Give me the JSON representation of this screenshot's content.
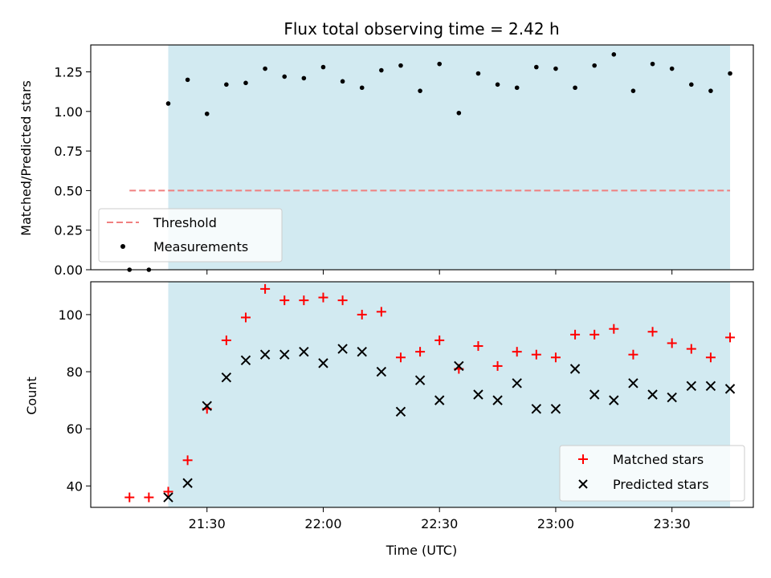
{
  "chart_data": [
    {
      "type": "scatter",
      "panel": "top",
      "title": "Flux total observing time = 2.42 h",
      "ylabel": "Matched/Predicted stars",
      "xlabel": "",
      "ylim": [
        0.0,
        1.42
      ],
      "yticks": [
        0.0,
        0.25,
        0.5,
        0.75,
        1.0,
        1.25
      ],
      "ytick_labels": [
        "0.00",
        "0.25",
        "0.50",
        "0.75",
        "1.00",
        "1.25"
      ],
      "shaded_region": {
        "x_start": "21:20",
        "x_end": "23:45",
        "color": "#add8e6"
      },
      "legend_position": "lower-left",
      "threshold": {
        "name": "Threshold",
        "value": 0.5,
        "x_start": "21:10",
        "x_end": "23:45",
        "color": "#f08080",
        "style": "dashed"
      },
      "series": [
        {
          "name": "Measurements",
          "color": "#000000",
          "marker": "dot",
          "x": [
            "21:10",
            "21:15",
            "21:20",
            "21:25",
            "21:30",
            "21:35",
            "21:40",
            "21:45",
            "21:50",
            "21:55",
            "22:00",
            "22:05",
            "22:10",
            "22:15",
            "22:20",
            "22:25",
            "22:30",
            "22:35",
            "22:40",
            "22:45",
            "22:50",
            "22:55",
            "23:00",
            "23:05",
            "23:10",
            "23:15",
            "23:20",
            "23:25",
            "23:30",
            "23:35",
            "23:40",
            "23:45"
          ],
          "y": [
            0.0,
            0.0,
            1.05,
            1.2,
            0.985,
            1.17,
            1.18,
            1.27,
            1.22,
            1.21,
            1.28,
            1.19,
            1.15,
            1.26,
            1.29,
            1.13,
            1.3,
            0.99,
            1.24,
            1.17,
            1.15,
            1.28,
            1.27,
            1.15,
            1.29,
            1.36,
            1.13,
            1.3,
            1.27,
            1.17,
            1.13,
            1.24
          ]
        }
      ]
    },
    {
      "type": "scatter",
      "panel": "bottom",
      "title": "",
      "ylabel": "Count",
      "xlabel": "Time (UTC)",
      "ylim": [
        32.5,
        111.5
      ],
      "yticks": [
        40,
        60,
        80,
        100
      ],
      "ytick_labels": [
        "40",
        "60",
        "80",
        "100"
      ],
      "xticks": [
        "21:30",
        "22:00",
        "22:30",
        "23:00",
        "23:30"
      ],
      "xlim": [
        "21:00",
        "23:51"
      ],
      "shaded_region": {
        "x_start": "21:20",
        "x_end": "23:45",
        "color": "#add8e6"
      },
      "legend_position": "lower-right",
      "series": [
        {
          "name": "Matched stars",
          "color": "#ff0000",
          "marker": "plus",
          "x": [
            "21:10",
            "21:15",
            "21:20",
            "21:25",
            "21:30",
            "21:35",
            "21:40",
            "21:45",
            "21:50",
            "21:55",
            "22:00",
            "22:05",
            "22:10",
            "22:15",
            "22:20",
            "22:25",
            "22:30",
            "22:35",
            "22:40",
            "22:45",
            "22:50",
            "22:55",
            "23:00",
            "23:05",
            "23:10",
            "23:15",
            "23:20",
            "23:25",
            "23:30",
            "23:35",
            "23:40",
            "23:45"
          ],
          "y": [
            36,
            36,
            38,
            49,
            67,
            91,
            99,
            109,
            105,
            105,
            106,
            105,
            100,
            101,
            85,
            87,
            91,
            81,
            89,
            82,
            87,
            86,
            85,
            93,
            93,
            95,
            86,
            94,
            90,
            88,
            85,
            92
          ]
        },
        {
          "name": "Predicted stars",
          "color": "#000000",
          "marker": "x",
          "x": [
            "21:20",
            "21:25",
            "21:30",
            "21:35",
            "21:40",
            "21:45",
            "21:50",
            "21:55",
            "22:00",
            "22:05",
            "22:10",
            "22:15",
            "22:20",
            "22:25",
            "22:30",
            "22:35",
            "22:40",
            "22:45",
            "22:50",
            "22:55",
            "23:00",
            "23:05",
            "23:10",
            "23:15",
            "23:20",
            "23:25",
            "23:30",
            "23:35",
            "23:40",
            "23:45"
          ],
          "y": [
            36,
            41,
            68,
            78,
            84,
            86,
            86,
            87,
            83,
            88,
            87,
            80,
            66,
            77,
            70,
            82,
            72,
            70,
            76,
            67,
            67,
            81,
            72,
            70,
            76,
            72,
            71,
            75,
            75,
            74
          ]
        }
      ]
    }
  ]
}
